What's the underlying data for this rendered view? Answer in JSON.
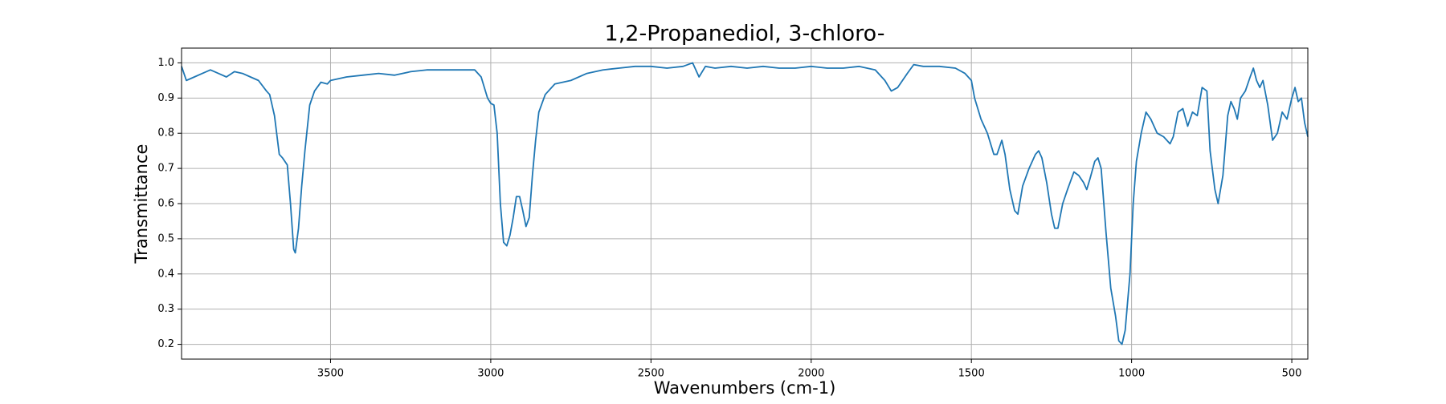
{
  "chart_data": {
    "type": "line",
    "title": "1,2-Propanediol, 3-chloro-",
    "x_label": "Wavenumbers (cm-1)",
    "y_label": "Transmittance",
    "color": "#1f77b4",
    "grid": true,
    "xlim": [
      3965,
      450
    ],
    "ylim": [
      0.158,
      1.042
    ],
    "xticks": [
      3500,
      3000,
      2500,
      2000,
      1500,
      1000,
      500
    ],
    "yticks": [
      0.2,
      0.3,
      0.4,
      0.5,
      0.6,
      0.7,
      0.8,
      0.9,
      {
        "value": 1,
        "label": "1.0"
      }
    ],
    "x": [
      3965,
      3950,
      3925,
      3900,
      3875,
      3850,
      3825,
      3800,
      3775,
      3750,
      3725,
      3700,
      3690,
      3675,
      3660,
      3650,
      3635,
      3625,
      3615,
      3610,
      3600,
      3590,
      3580,
      3565,
      3550,
      3530,
      3510,
      3500,
      3450,
      3400,
      3350,
      3300,
      3250,
      3200,
      3150,
      3100,
      3050,
      3030,
      3010,
      3000,
      2990,
      2980,
      2970,
      2960,
      2950,
      2940,
      2930,
      2920,
      2910,
      2900,
      2890,
      2880,
      2870,
      2860,
      2850,
      2830,
      2800,
      2750,
      2700,
      2650,
      2600,
      2550,
      2500,
      2450,
      2400,
      2370,
      2350,
      2330,
      2300,
      2250,
      2200,
      2150,
      2100,
      2050,
      2000,
      1950,
      1900,
      1850,
      1800,
      1770,
      1750,
      1730,
      1700,
      1680,
      1650,
      1600,
      1550,
      1520,
      1500,
      1490,
      1470,
      1450,
      1430,
      1420,
      1405,
      1395,
      1380,
      1365,
      1355,
      1340,
      1320,
      1300,
      1290,
      1280,
      1265,
      1250,
      1240,
      1230,
      1215,
      1200,
      1180,
      1165,
      1150,
      1140,
      1130,
      1115,
      1105,
      1095,
      1080,
      1065,
      1050,
      1040,
      1030,
      1020,
      1005,
      995,
      985,
      970,
      955,
      940,
      920,
      900,
      880,
      870,
      855,
      840,
      825,
      810,
      795,
      780,
      765,
      755,
      740,
      730,
      715,
      700,
      690,
      680,
      670,
      660,
      645,
      630,
      620,
      610,
      600,
      590,
      575,
      560,
      545,
      530,
      515,
      500,
      490,
      480,
      470,
      460,
      450
    ],
    "values": [
      0.99,
      0.95,
      0.96,
      0.97,
      0.98,
      0.97,
      0.96,
      0.975,
      0.97,
      0.96,
      0.95,
      0.92,
      0.91,
      0.85,
      0.74,
      0.73,
      0.71,
      0.6,
      0.47,
      0.46,
      0.53,
      0.65,
      0.75,
      0.88,
      0.92,
      0.945,
      0.94,
      0.95,
      0.96,
      0.965,
      0.97,
      0.965,
      0.975,
      0.98,
      0.98,
      0.98,
      0.98,
      0.96,
      0.9,
      0.885,
      0.88,
      0.8,
      0.6,
      0.49,
      0.48,
      0.51,
      0.56,
      0.62,
      0.62,
      0.58,
      0.535,
      0.56,
      0.68,
      0.78,
      0.86,
      0.91,
      0.94,
      0.95,
      0.97,
      0.98,
      0.985,
      0.99,
      0.99,
      0.985,
      0.99,
      1.0,
      0.96,
      0.99,
      0.985,
      0.99,
      0.985,
      0.99,
      0.985,
      0.985,
      0.99,
      0.985,
      0.985,
      0.99,
      0.98,
      0.95,
      0.92,
      0.93,
      0.97,
      0.995,
      0.99,
      0.99,
      0.985,
      0.97,
      0.95,
      0.9,
      0.84,
      0.8,
      0.74,
      0.74,
      0.78,
      0.74,
      0.64,
      0.58,
      0.57,
      0.65,
      0.7,
      0.74,
      0.75,
      0.73,
      0.66,
      0.57,
      0.53,
      0.53,
      0.6,
      0.64,
      0.69,
      0.68,
      0.66,
      0.64,
      0.67,
      0.72,
      0.73,
      0.7,
      0.52,
      0.36,
      0.28,
      0.21,
      0.2,
      0.24,
      0.4,
      0.6,
      0.72,
      0.8,
      0.86,
      0.84,
      0.8,
      0.79,
      0.77,
      0.79,
      0.86,
      0.87,
      0.82,
      0.86,
      0.85,
      0.93,
      0.92,
      0.75,
      0.64,
      0.6,
      0.68,
      0.85,
      0.89,
      0.87,
      0.84,
      0.9,
      0.92,
      0.96,
      0.985,
      0.95,
      0.93,
      0.95,
      0.88,
      0.78,
      0.8,
      0.86,
      0.84,
      0.9,
      0.93,
      0.89,
      0.9,
      0.83,
      0.79
    ]
  }
}
